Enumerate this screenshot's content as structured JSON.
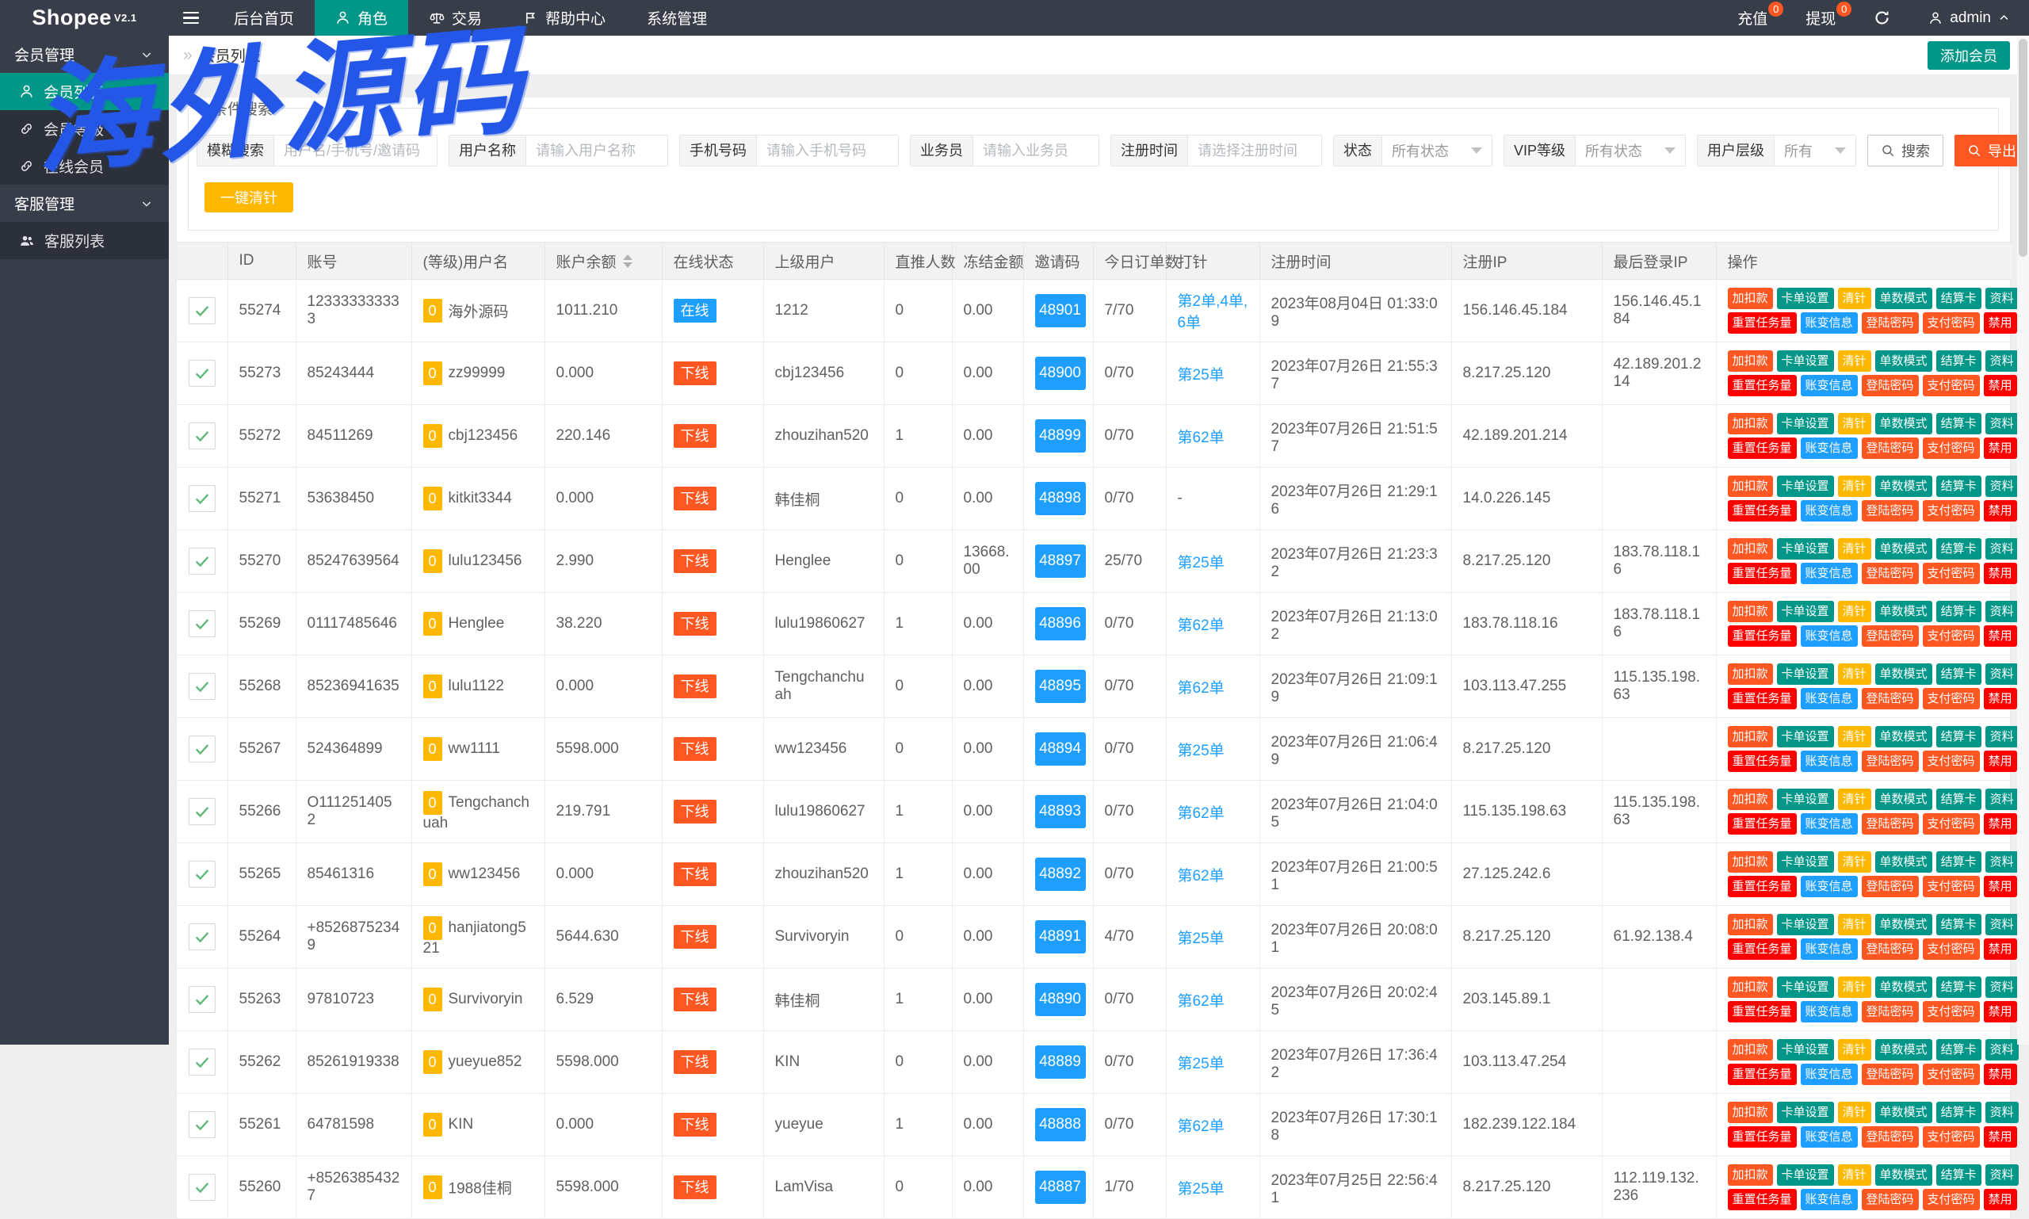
{
  "brand": {
    "name": "Shopee",
    "version": "V2.1"
  },
  "topnav": {
    "items": [
      {
        "label": "后台首页"
      },
      {
        "label": "角色",
        "icon": "person-icon",
        "active": true
      },
      {
        "label": "交易",
        "icon": "scales-icon"
      },
      {
        "label": "帮助中心",
        "icon": "flag-icon"
      },
      {
        "label": "系统管理"
      }
    ],
    "right": [
      {
        "label": "充值",
        "badge": "0"
      },
      {
        "label": "提现",
        "badge": "0"
      }
    ],
    "user": "admin"
  },
  "sidebar": {
    "groups": [
      {
        "label": "会员管理",
        "children": [
          {
            "label": "会员列表",
            "icon": "user-icon",
            "active": true
          },
          {
            "label": "会员等级",
            "icon": "link-icon"
          },
          {
            "label": "在线会员",
            "icon": "link-icon"
          }
        ]
      },
      {
        "label": "客服管理",
        "children": [
          {
            "label": "客服列表",
            "icon": "users-icon"
          }
        ]
      }
    ]
  },
  "breadcrumb": {
    "title": "会员列表"
  },
  "add_member_label": "添加会员",
  "search": {
    "legend": "条件搜索",
    "fields": [
      {
        "label": "模糊搜索",
        "placeholder": "用户名/手机号/邀请码",
        "type": "text"
      },
      {
        "label": "用户名称",
        "placeholder": "请输入用户名称",
        "type": "text"
      },
      {
        "label": "手机号码",
        "placeholder": "请输入手机号码",
        "type": "text"
      },
      {
        "label": "业务员",
        "placeholder": "请输入业务员",
        "type": "text"
      },
      {
        "label": "注册时间",
        "placeholder": "请选择注册时间",
        "type": "text"
      },
      {
        "label": "状态",
        "value": "所有状态",
        "type": "select"
      },
      {
        "label": "VIP等级",
        "value": "所有状态",
        "type": "select"
      },
      {
        "label": "用户层级",
        "value": "所有",
        "type": "select"
      }
    ],
    "search_label": "搜索",
    "export_label": "导出"
  },
  "clear_needle_label": "一键清针",
  "table": {
    "headers": [
      "",
      "ID",
      "账号",
      "(等级)用户名",
      "账户余额",
      "在线状态",
      "上级用户",
      "直推人数",
      "冻结金额",
      "邀请码",
      "今日订单数",
      "打针",
      "注册时间",
      "注册IP",
      "最后登录IP",
      "操作"
    ],
    "sortable_header": "账户余额",
    "actions": [
      [
        {
          "label": "加扣款",
          "color": "#FF5722"
        },
        {
          "label": "卡单设置",
          "color": "#009688"
        },
        {
          "label": "清针",
          "color": "#FFB800"
        },
        {
          "label": "单数模式",
          "color": "#009688"
        },
        {
          "label": "结算卡",
          "color": "#009688"
        },
        {
          "label": "资料",
          "color": "#009688"
        }
      ],
      [
        {
          "label": "重置任务量",
          "color": "#FF0000"
        },
        {
          "label": "账变信息",
          "color": "#1E9FFF"
        },
        {
          "label": "登陆密码",
          "color": "#FF5722"
        },
        {
          "label": "支付密码",
          "color": "#FF5722"
        },
        {
          "label": "禁用",
          "color": "#FF0000"
        }
      ]
    ],
    "rows": [
      {
        "id": "55274",
        "account": "123333333333",
        "level": "0",
        "username": "海外源码",
        "balance": "1011.210",
        "status": "在线",
        "parent": "1212",
        "direct": "0",
        "frozen": "0.00",
        "invite": "48901",
        "orders": "7/70",
        "needle": "第2单,4单,6单",
        "needle_link": true,
        "reg_time": "2023年08月04日 01:33:09",
        "reg_ip": "156.146.45.184",
        "last_ip": "156.146.45.184"
      },
      {
        "id": "55273",
        "account": "85243444",
        "level": "0",
        "username": "zz99999",
        "balance": "0.000",
        "status": "下线",
        "parent": "cbj123456",
        "direct": "0",
        "frozen": "0.00",
        "invite": "48900",
        "orders": "0/70",
        "needle": "第25单",
        "needle_link": true,
        "reg_time": "2023年07月26日 21:55:37",
        "reg_ip": "8.217.25.120",
        "last_ip": "42.189.201.214"
      },
      {
        "id": "55272",
        "account": "84511269",
        "level": "0",
        "username": "cbj123456",
        "balance": "220.146",
        "status": "下线",
        "parent": "zhouzihan520",
        "direct": "1",
        "frozen": "0.00",
        "invite": "48899",
        "orders": "0/70",
        "needle": "第62单",
        "needle_link": true,
        "reg_time": "2023年07月26日 21:51:57",
        "reg_ip": "42.189.201.214",
        "last_ip": ""
      },
      {
        "id": "55271",
        "account": "53638450",
        "level": "0",
        "username": "kitkit3344",
        "balance": "0.000",
        "status": "下线",
        "parent": "韩佳桐",
        "direct": "0",
        "frozen": "0.00",
        "invite": "48898",
        "orders": "0/70",
        "needle": "-",
        "needle_link": false,
        "reg_time": "2023年07月26日 21:29:16",
        "reg_ip": "14.0.226.145",
        "last_ip": ""
      },
      {
        "id": "55270",
        "account": "85247639564",
        "level": "0",
        "username": "lulu123456",
        "balance": "2.990",
        "status": "下线",
        "parent": "Henglee",
        "direct": "0",
        "frozen": "13668.00",
        "invite": "48897",
        "orders": "25/70",
        "needle": "第25单",
        "needle_link": true,
        "reg_time": "2023年07月26日 21:23:32",
        "reg_ip": "8.217.25.120",
        "last_ip": "183.78.118.16"
      },
      {
        "id": "55269",
        "account": "01117485646",
        "level": "0",
        "username": "Henglee",
        "balance": "38.220",
        "status": "下线",
        "parent": "lulu19860627",
        "direct": "1",
        "frozen": "0.00",
        "invite": "48896",
        "orders": "0/70",
        "needle": "第62单",
        "needle_link": true,
        "reg_time": "2023年07月26日 21:13:02",
        "reg_ip": "183.78.118.16",
        "last_ip": "183.78.118.16"
      },
      {
        "id": "55268",
        "account": "85236941635",
        "level": "0",
        "username": "lulu1122",
        "balance": "0.000",
        "status": "下线",
        "parent": "Tengchanchuah",
        "direct": "0",
        "frozen": "0.00",
        "invite": "48895",
        "orders": "0/70",
        "needle": "第62单",
        "needle_link": true,
        "reg_time": "2023年07月26日 21:09:19",
        "reg_ip": "103.113.47.255",
        "last_ip": "115.135.198.63"
      },
      {
        "id": "55267",
        "account": "524364899",
        "level": "0",
        "username": "ww1111",
        "balance": "5598.000",
        "status": "下线",
        "parent": "ww123456",
        "direct": "0",
        "frozen": "0.00",
        "invite": "48894",
        "orders": "0/70",
        "needle": "第25单",
        "needle_link": true,
        "reg_time": "2023年07月26日 21:06:49",
        "reg_ip": "8.217.25.120",
        "last_ip": ""
      },
      {
        "id": "55266",
        "account": "O1112514052",
        "level": "0",
        "username": "Tengchanchuah",
        "balance": "219.791",
        "status": "下线",
        "parent": "lulu19860627",
        "direct": "1",
        "frozen": "0.00",
        "invite": "48893",
        "orders": "0/70",
        "needle": "第62单",
        "needle_link": true,
        "reg_time": "2023年07月26日 21:04:05",
        "reg_ip": "115.135.198.63",
        "last_ip": "115.135.198.63"
      },
      {
        "id": "55265",
        "account": "85461316",
        "level": "0",
        "username": "ww123456",
        "balance": "0.000",
        "status": "下线",
        "parent": "zhouzihan520",
        "direct": "1",
        "frozen": "0.00",
        "invite": "48892",
        "orders": "0/70",
        "needle": "第62单",
        "needle_link": true,
        "reg_time": "2023年07月26日 21:00:51",
        "reg_ip": "27.125.242.6",
        "last_ip": ""
      },
      {
        "id": "55264",
        "account": "+85268752349",
        "level": "0",
        "username": "hanjiatong521",
        "balance": "5644.630",
        "status": "下线",
        "parent": "Survivoryin",
        "direct": "0",
        "frozen": "0.00",
        "invite": "48891",
        "orders": "4/70",
        "needle": "第25单",
        "needle_link": true,
        "reg_time": "2023年07月26日 20:08:01",
        "reg_ip": "8.217.25.120",
        "last_ip": "61.92.138.4"
      },
      {
        "id": "55263",
        "account": "97810723",
        "level": "0",
        "username": "Survivoryin",
        "balance": "6.529",
        "status": "下线",
        "parent": "韩佳桐",
        "direct": "1",
        "frozen": "0.00",
        "invite": "48890",
        "orders": "0/70",
        "needle": "第62单",
        "needle_link": true,
        "reg_time": "2023年07月26日 20:02:45",
        "reg_ip": "203.145.89.1",
        "last_ip": ""
      },
      {
        "id": "55262",
        "account": "85261919338",
        "level": "0",
        "username": "yueyue852",
        "balance": "5598.000",
        "status": "下线",
        "parent": "KIN",
        "direct": "0",
        "frozen": "0.00",
        "invite": "48889",
        "orders": "0/70",
        "needle": "第25单",
        "needle_link": true,
        "reg_time": "2023年07月26日 17:36:42",
        "reg_ip": "103.113.47.254",
        "last_ip": ""
      },
      {
        "id": "55261",
        "account": "64781598",
        "level": "0",
        "username": "KIN",
        "balance": "0.000",
        "status": "下线",
        "parent": "yueyue",
        "direct": "1",
        "frozen": "0.00",
        "invite": "48888",
        "orders": "0/70",
        "needle": "第62单",
        "needle_link": true,
        "reg_time": "2023年07月26日 17:30:18",
        "reg_ip": "182.239.122.184",
        "last_ip": ""
      },
      {
        "id": "55260",
        "account": "+85263854327",
        "level": "0",
        "username": "1988佳桐",
        "balance": "5598.000",
        "status": "下线",
        "parent": "LamVisa",
        "direct": "0",
        "frozen": "0.00",
        "invite": "48887",
        "orders": "1/70",
        "needle": "第25单",
        "needle_link": true,
        "reg_time": "2023年07月25日 22:56:41",
        "reg_ip": "8.217.25.120",
        "last_ip": "112.119.132.236"
      }
    ]
  },
  "watermark": "海外源码",
  "colors": {
    "primary": "#009688",
    "navbar": "#373D49",
    "status": {
      "在线": "#1E9FFF",
      "下线": "#FF5722"
    },
    "level_badge": "#FFB800",
    "invite_button": "#1E9FFF",
    "needle_link": "#1E9FFF",
    "export_button": "#FF5722",
    "clear_needle_button": "#FFB800",
    "nav_badge": "#FF5722",
    "watermark": "#2457E8"
  }
}
